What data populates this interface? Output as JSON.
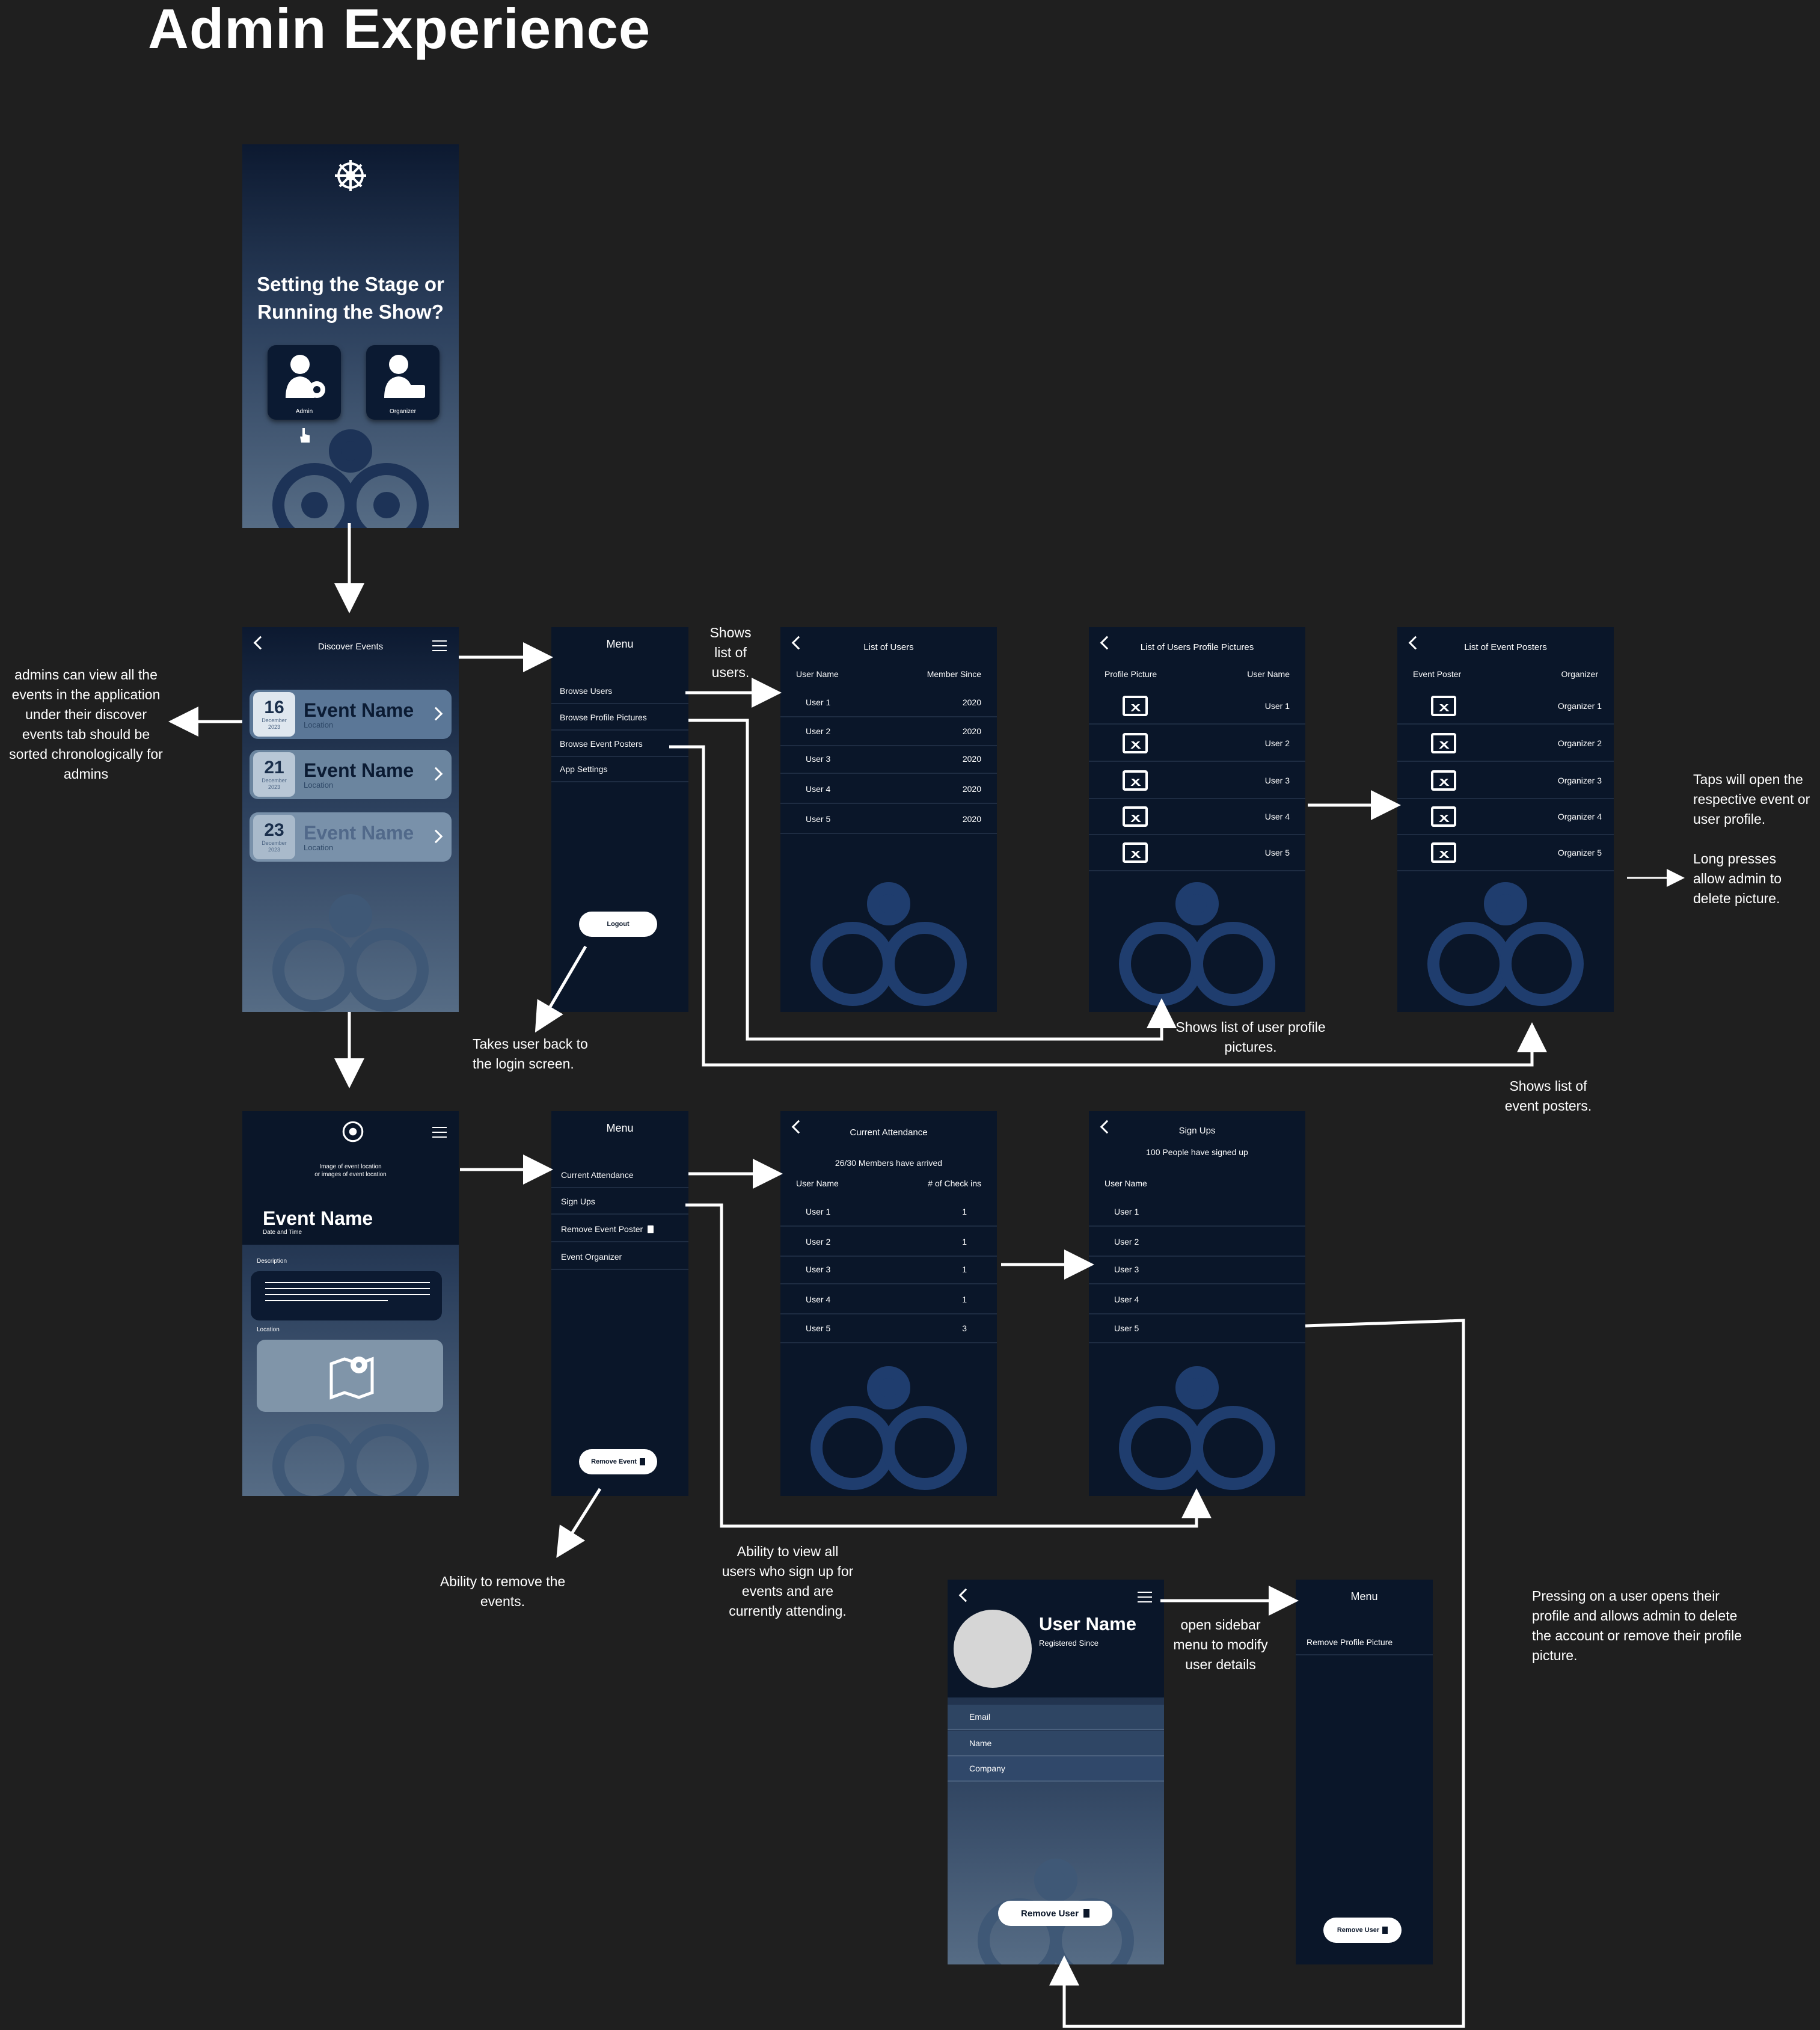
{
  "page_title": "Admin Experience",
  "colors": {
    "background": "#1f1f1f",
    "screen_dark": "#0a1629",
    "accent_white": "#ffffff"
  },
  "login": {
    "headline_1": "Setting the Stage or",
    "headline_2": "Running the Show?",
    "admin_label": "Admin",
    "organizer_label": "Organizer"
  },
  "discover": {
    "title": "Discover Events",
    "events": [
      {
        "day": "16",
        "month": "December",
        "year": "2023",
        "name": "Event Name",
        "location": "Location"
      },
      {
        "day": "21",
        "month": "December",
        "year": "2023",
        "name": "Event Name",
        "location": "Location"
      },
      {
        "day": "23",
        "month": "December",
        "year": "2023",
        "name": "Event Name",
        "location": "Location"
      }
    ]
  },
  "menu1": {
    "title": "Menu",
    "items": [
      "Browse Users",
      "Browse Profile Pictures",
      "Browse Event Posters",
      "App Settings"
    ],
    "logout": "Logout"
  },
  "users": {
    "title": "List of Users",
    "col1": "User Name",
    "col2": "Member Since",
    "rows": [
      {
        "name": "User 1",
        "since": "2020"
      },
      {
        "name": "User 2",
        "since": "2020"
      },
      {
        "name": "User 3",
        "since": "2020"
      },
      {
        "name": "User 4",
        "since": "2020"
      },
      {
        "name": "User 5",
        "since": "2020"
      }
    ]
  },
  "pictures": {
    "title": "List of Users Profile Pictures",
    "col1": "Profile Picture",
    "col2": "User Name",
    "rows": [
      "User 1",
      "User 2",
      "User 3",
      "User 4",
      "User 5"
    ]
  },
  "posters": {
    "title": "List of Event Posters",
    "col1": "Event Poster",
    "col2": "Organizer",
    "rows": [
      "Organizer 1",
      "Organizer 2",
      "Organizer 3",
      "Organizer 4",
      "Organizer 5"
    ]
  },
  "event_detail": {
    "image_caption_1": "Image of event location",
    "image_caption_2": "or images of event location",
    "name": "Event Name",
    "datetime": "Date and Time",
    "description_label": "Description",
    "location_label": "Location"
  },
  "menu2": {
    "title": "Menu",
    "items": [
      "Current Attendance",
      "Sign Ups",
      "Remove Event Poster",
      "Event Organizer"
    ],
    "remove_event": "Remove Event"
  },
  "attendance": {
    "title": "Current Attendance",
    "summary": "26/30 Members have arrived",
    "col1": "User Name",
    "col2": "# of Check ins",
    "rows": [
      {
        "name": "User 1",
        "count": "1"
      },
      {
        "name": "User 2",
        "count": "1"
      },
      {
        "name": "User 3",
        "count": "1"
      },
      {
        "name": "User 4",
        "count": "1"
      },
      {
        "name": "User 5",
        "count": "3"
      }
    ]
  },
  "signups": {
    "title": "Sign Ups",
    "summary": "100 People have signed up",
    "col1": "User Name",
    "rows": [
      "User 1",
      "User 2",
      "User 3",
      "User 4",
      "User 5"
    ]
  },
  "profile": {
    "name": "User Name",
    "since": "Registered Since",
    "fields": [
      "Email",
      "Name",
      "Company"
    ],
    "remove_user": "Remove User"
  },
  "menu3": {
    "title": "Menu",
    "items": [
      "Remove Profile Picture"
    ],
    "remove_user": "Remove User"
  },
  "notes": {
    "discover": [
      "admins can view all the",
      "events in the application",
      "under their discover",
      "events tab should be",
      "sorted chronologically for",
      "admins"
    ],
    "shows_users": [
      "Shows",
      "list of",
      "users."
    ],
    "logout": [
      "Takes user back to",
      "the login screen."
    ],
    "profile_pics": [
      "Shows list of user profile",
      "pictures."
    ],
    "event_posters": [
      "Shows list of",
      "event posters."
    ],
    "taps": [
      "Taps will open the",
      "respective event or",
      "user profile."
    ],
    "long_press": [
      "Long presses",
      "allow admin to",
      "delete picture."
    ],
    "remove_event": [
      "Ability to remove the",
      "events."
    ],
    "view_users": [
      "Ability to view all",
      "users who sign up for",
      "events and are",
      "currently attending."
    ],
    "sidebar": [
      "open sidebar",
      "menu to modify",
      "user details"
    ],
    "pressing": [
      "Pressing on a user opens their",
      "profile and allows admin to delete",
      "the account or remove their profile",
      "picture."
    ]
  }
}
